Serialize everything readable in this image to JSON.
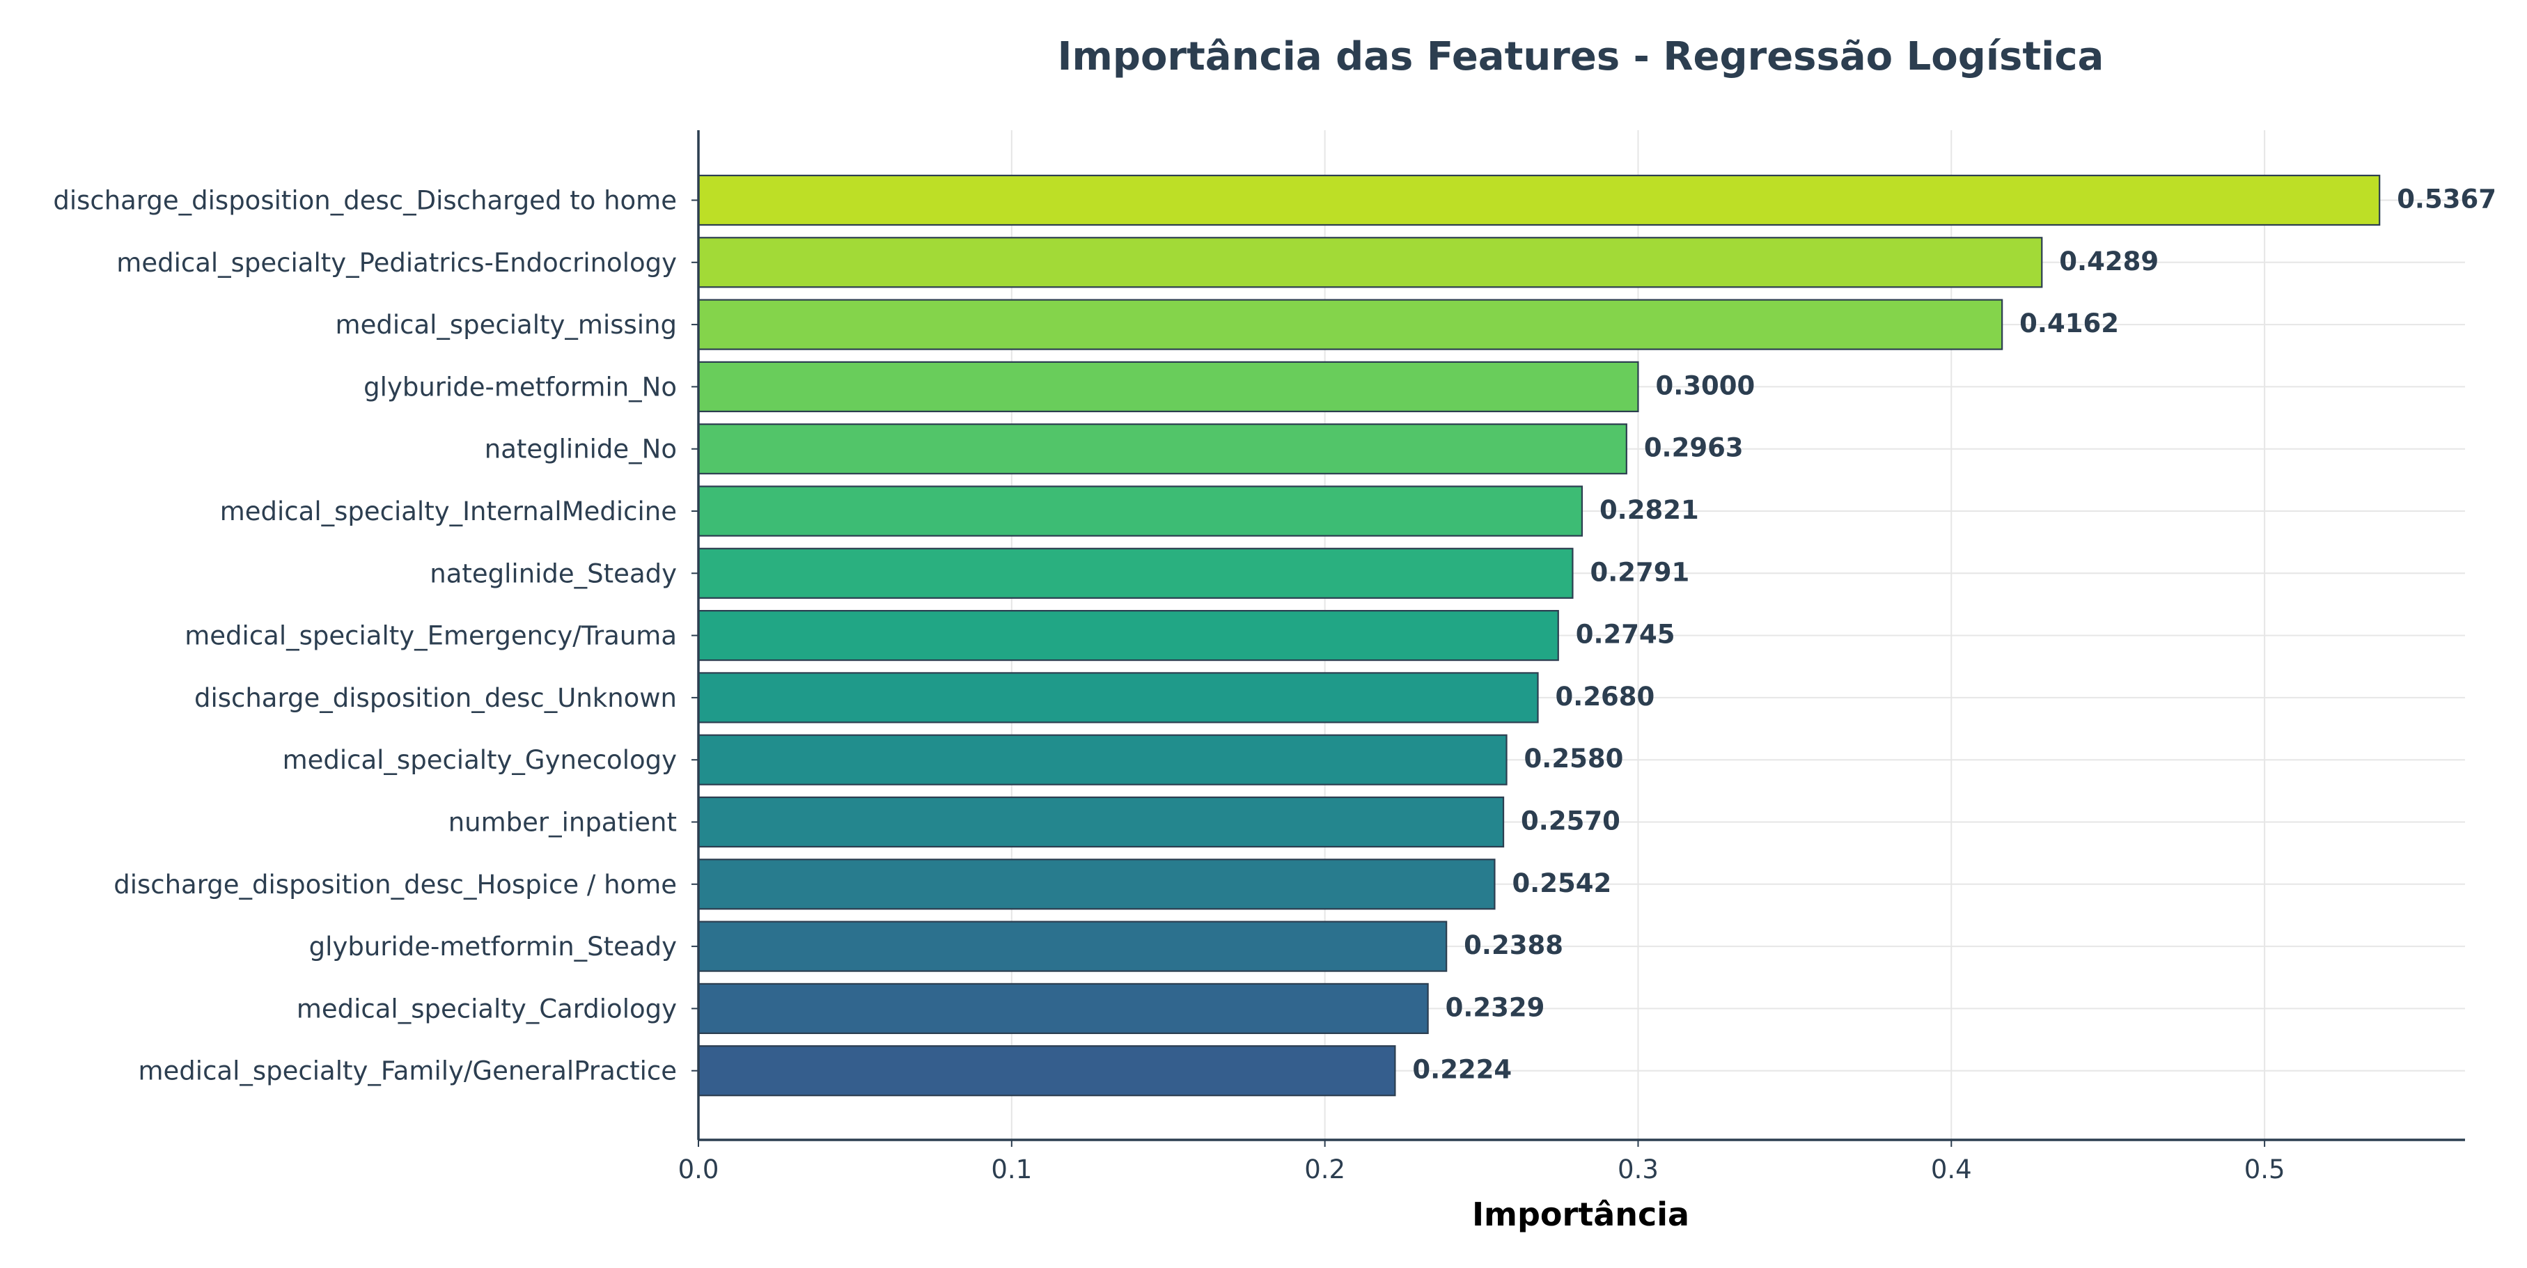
{
  "chart_data": {
    "type": "bar",
    "orientation": "horizontal",
    "title": "Importância das Features - Regressão Logística",
    "xlabel": "Importância",
    "ylabel": "",
    "xlim": [
      0,
      0.564
    ],
    "xticks": [
      0.0,
      0.1,
      0.2,
      0.3,
      0.4,
      0.5
    ],
    "xtick_labels": [
      "0.0",
      "0.1",
      "0.2",
      "0.3",
      "0.4",
      "0.5"
    ],
    "grid": true,
    "legend": "none",
    "categories": [
      "discharge_disposition_desc_Discharged to home",
      "medical_specialty_Pediatrics-Endocrinology",
      "medical_specialty_missing",
      "glyburide-metformin_No",
      "nateglinide_No",
      "medical_specialty_InternalMedicine",
      "nateglinide_Steady",
      "medical_specialty_Emergency/Trauma",
      "discharge_disposition_desc_Unknown",
      "medical_specialty_Gynecology",
      "number_inpatient",
      "discharge_disposition_desc_Hospice / home",
      "glyburide-metformin_Steady",
      "medical_specialty_Cardiology",
      "medical_specialty_Family/GeneralPractice"
    ],
    "values": [
      0.5367,
      0.4289,
      0.4162,
      0.3,
      0.2963,
      0.2821,
      0.2791,
      0.2745,
      0.268,
      0.258,
      0.257,
      0.2542,
      0.2388,
      0.2329,
      0.2224
    ],
    "value_labels": [
      "0.5367",
      "0.4289",
      "0.4162",
      "0.3000",
      "0.2963",
      "0.2821",
      "0.2791",
      "0.2745",
      "0.2680",
      "0.2580",
      "0.2570",
      "0.2542",
      "0.2388",
      "0.2329",
      "0.2224"
    ],
    "bar_colors": [
      "#bddf26",
      "#a2da37",
      "#84d44b",
      "#69cd5b",
      "#52c569",
      "#3dbc74",
      "#2ab07f",
      "#21a685",
      "#1f9a8a",
      "#218e8d",
      "#24868e",
      "#287c8e",
      "#2c718e",
      "#31668e",
      "#355e8d"
    ],
    "colors": {
      "text": "#2c3e50",
      "axis": "#2c3e50",
      "grid": "#e6e6e6",
      "bar_edge": "#2c3e50"
    }
  }
}
